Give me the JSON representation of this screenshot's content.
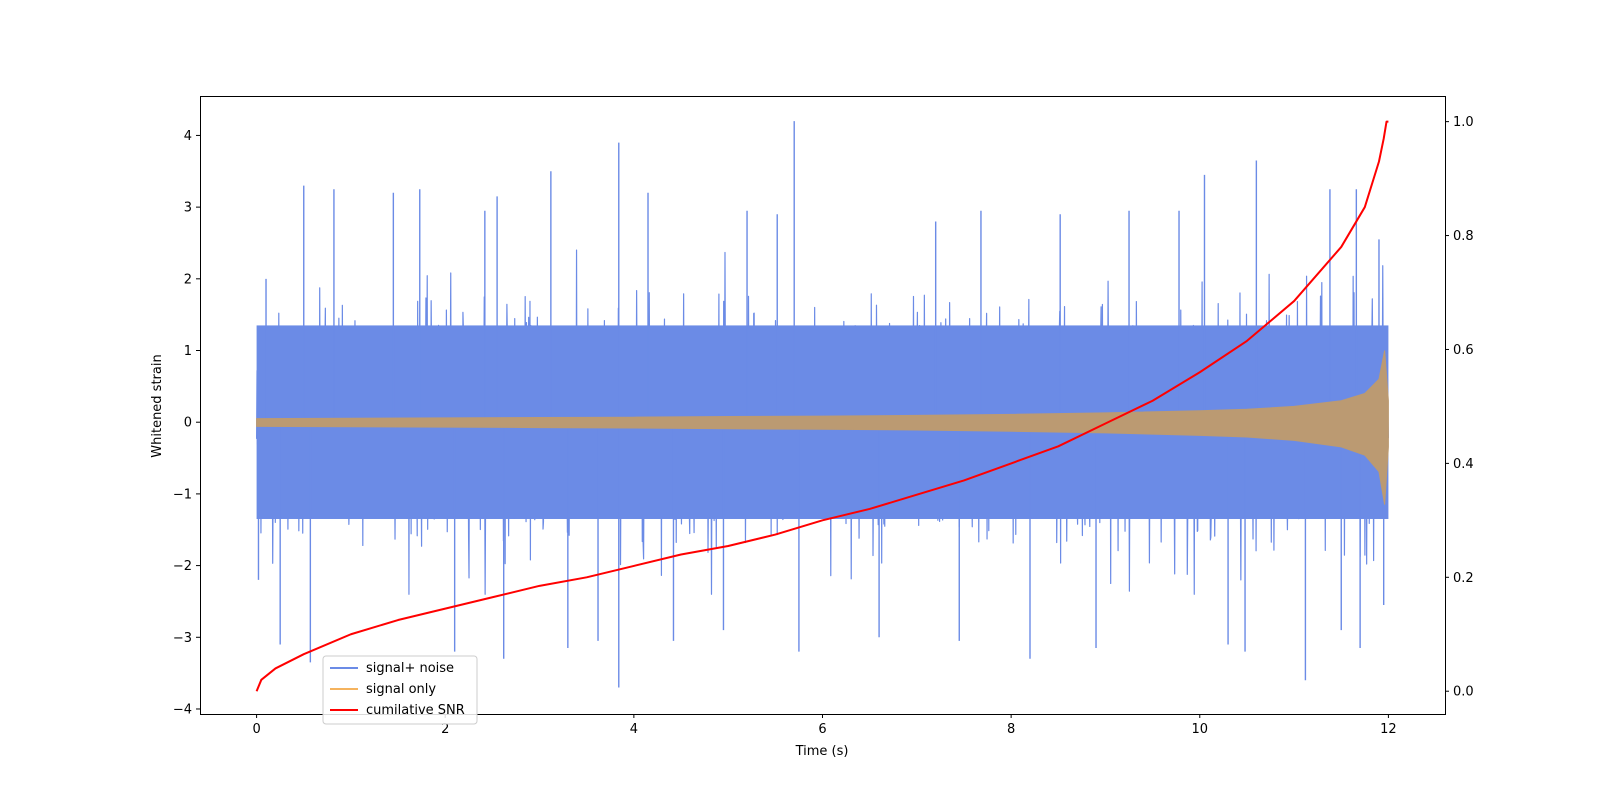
{
  "chart_data": {
    "type": "line",
    "title": "",
    "xlabel": "Time (s)",
    "ylabel": "Whitened strain",
    "y2label": "",
    "xlim": [
      -0.6,
      12.6
    ],
    "ylim": [
      -4.07,
      4.55
    ],
    "y2lim": [
      -0.04,
      1.045
    ],
    "xticks": [
      0,
      2,
      4,
      6,
      8,
      10,
      12
    ],
    "xtick_labels": [
      "0",
      "2",
      "4",
      "6",
      "8",
      "10",
      "12"
    ],
    "yticks": [
      4,
      3,
      2,
      1,
      0,
      -1,
      -2,
      -3,
      -4
    ],
    "ytick_labels": [
      "4",
      "3",
      "2",
      "1",
      "0",
      "−1",
      "−2",
      "−3",
      "−4"
    ],
    "y2ticks": [
      1.0,
      0.8,
      0.6,
      0.4,
      0.2,
      0.0
    ],
    "y2tick_labels": [
      "1.0",
      "0.8",
      "0.6",
      "0.4",
      "0.2",
      "0.0"
    ],
    "grid": false,
    "legend_position": "lower-left",
    "series": [
      {
        "name": "signal+ noise",
        "color": "#6b8be6",
        "axis": "left",
        "kind": "noise-band",
        "t_range": [
          0,
          12
        ],
        "spikes": [
          {
            "x": 0.02,
            "y": -2.2
          },
          {
            "x": 0.1,
            "y": 2.0
          },
          {
            "x": 0.25,
            "y": -3.1
          },
          {
            "x": 0.5,
            "y": 3.3
          },
          {
            "x": 0.57,
            "y": -3.35
          },
          {
            "x": 0.82,
            "y": 3.25
          },
          {
            "x": 1.45,
            "y": 3.2
          },
          {
            "x": 1.73,
            "y": 3.25
          },
          {
            "x": 2.1,
            "y": -3.2
          },
          {
            "x": 2.42,
            "y": 2.95
          },
          {
            "x": 2.62,
            "y": -3.3
          },
          {
            "x": 2.55,
            "y": 3.15
          },
          {
            "x": 3.12,
            "y": 3.5
          },
          {
            "x": 3.3,
            "y": -3.15
          },
          {
            "x": 3.62,
            "y": -3.05
          },
          {
            "x": 3.84,
            "y": 3.9
          },
          {
            "x": 3.84,
            "y": -3.7
          },
          {
            "x": 4.15,
            "y": 3.2
          },
          {
            "x": 4.42,
            "y": -3.05
          },
          {
            "x": 4.95,
            "y": -2.9
          },
          {
            "x": 5.2,
            "y": 2.95
          },
          {
            "x": 5.52,
            "y": 2.9
          },
          {
            "x": 5.7,
            "y": 4.2
          },
          {
            "x": 5.75,
            "y": -3.2
          },
          {
            "x": 6.6,
            "y": -3.0
          },
          {
            "x": 7.2,
            "y": 2.8
          },
          {
            "x": 7.45,
            "y": -3.05
          },
          {
            "x": 7.68,
            "y": 2.95
          },
          {
            "x": 8.2,
            "y": -3.3
          },
          {
            "x": 8.52,
            "y": 2.9
          },
          {
            "x": 8.9,
            "y": -3.15
          },
          {
            "x": 9.25,
            "y": 2.95
          },
          {
            "x": 9.78,
            "y": 2.95
          },
          {
            "x": 10.05,
            "y": 3.45
          },
          {
            "x": 10.3,
            "y": -3.1
          },
          {
            "x": 10.6,
            "y": 3.65
          },
          {
            "x": 10.48,
            "y": -3.2
          },
          {
            "x": 11.12,
            "y": -3.6
          },
          {
            "x": 11.38,
            "y": 3.25
          },
          {
            "x": 11.5,
            "y": -2.9
          },
          {
            "x": 11.66,
            "y": 3.25
          },
          {
            "x": 11.7,
            "y": -3.15
          },
          {
            "x": 11.9,
            "y": 2.55
          },
          {
            "x": 11.95,
            "y": -2.55
          }
        ]
      },
      {
        "name": "signal only",
        "color": "#f5b35e",
        "fill_color": "#bb9a72",
        "axis": "left",
        "kind": "chirp-envelope",
        "envelope": {
          "x": [
            0,
            1,
            2,
            3,
            4,
            5,
            6,
            7,
            8,
            9,
            10,
            10.5,
            11,
            11.5,
            11.75,
            11.9,
            11.96,
            12
          ],
          "y": [
            0.05,
            0.055,
            0.06,
            0.065,
            0.07,
            0.08,
            0.085,
            0.095,
            0.11,
            0.13,
            0.16,
            0.18,
            0.22,
            0.3,
            0.4,
            0.6,
            1.0,
            0.3
          ]
        }
      },
      {
        "name": "cumilative SNR",
        "color": "#ff0000",
        "axis": "right",
        "kind": "line",
        "x": [
          0,
          0.05,
          0.2,
          0.5,
          1,
          1.5,
          2,
          2.5,
          3,
          3.5,
          4,
          4.5,
          5,
          5.5,
          6,
          6.5,
          7,
          7.5,
          8,
          8.5,
          9,
          9.5,
          10,
          10.5,
          11,
          11.5,
          11.75,
          11.9,
          11.95,
          11.98,
          12
        ],
        "y": [
          0.0,
          0.02,
          0.04,
          0.065,
          0.1,
          0.125,
          0.145,
          0.165,
          0.185,
          0.2,
          0.22,
          0.24,
          0.255,
          0.275,
          0.3,
          0.32,
          0.345,
          0.37,
          0.4,
          0.43,
          0.47,
          0.51,
          0.56,
          0.615,
          0.685,
          0.78,
          0.85,
          0.93,
          0.97,
          1.0,
          1.0
        ]
      }
    ]
  }
}
